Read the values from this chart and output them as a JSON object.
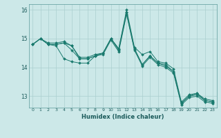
{
  "xlabel": "Humidex (Indice chaleur)",
  "ylabel": "",
  "bg_color": "#cce8e8",
  "grid_color": "#aacfcf",
  "line_color": "#1a7a6e",
  "xlim": [
    -0.5,
    23.5
  ],
  "ylim": [
    12.6,
    16.2
  ],
  "yticks": [
    13,
    14,
    15,
    16
  ],
  "xticks": [
    0,
    1,
    2,
    3,
    4,
    5,
    6,
    7,
    8,
    9,
    10,
    11,
    12,
    13,
    14,
    15,
    16,
    17,
    18,
    19,
    20,
    21,
    22,
    23
  ],
  "series": [
    [
      14.8,
      15.0,
      14.8,
      14.8,
      14.85,
      14.75,
      14.3,
      14.3,
      14.4,
      14.5,
      15.0,
      14.65,
      15.9,
      14.65,
      14.1,
      14.4,
      14.15,
      14.1,
      13.85,
      12.75,
      13.0,
      13.1,
      12.85,
      12.8
    ],
    [
      14.8,
      15.0,
      14.8,
      14.8,
      14.85,
      14.6,
      14.3,
      14.3,
      14.4,
      14.5,
      15.0,
      14.6,
      15.9,
      14.65,
      14.1,
      14.4,
      14.15,
      14.05,
      13.85,
      12.75,
      13.0,
      13.05,
      12.85,
      12.8
    ],
    [
      14.8,
      15.0,
      14.85,
      14.85,
      14.9,
      14.75,
      14.35,
      14.35,
      14.45,
      14.5,
      15.0,
      14.65,
      16.0,
      14.7,
      14.45,
      14.55,
      14.2,
      14.15,
      13.95,
      12.8,
      13.05,
      13.1,
      12.9,
      12.85
    ],
    [
      14.8,
      15.0,
      14.8,
      14.75,
      14.3,
      14.2,
      14.15,
      14.15,
      14.4,
      14.45,
      14.95,
      14.55,
      15.85,
      14.6,
      14.05,
      14.35,
      14.1,
      14.0,
      13.8,
      12.7,
      12.95,
      13.0,
      12.8,
      12.75
    ]
  ],
  "figsize": [
    3.2,
    2.0
  ],
  "dpi": 100
}
